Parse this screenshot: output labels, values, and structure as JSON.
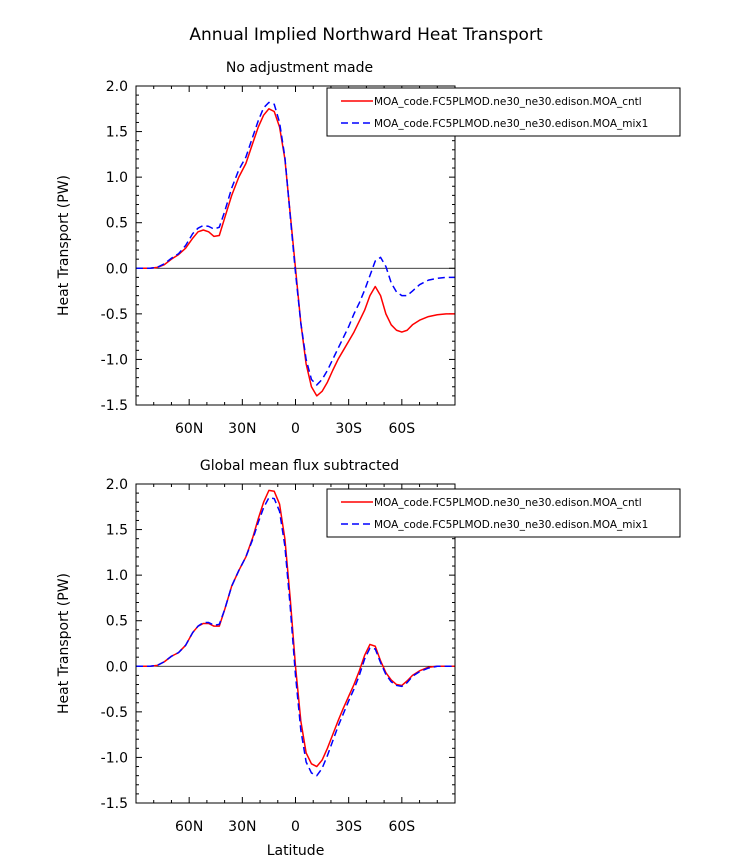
{
  "figure": {
    "title": "Annual Implied Northward Heat Transport"
  },
  "chart_data": [
    {
      "type": "line",
      "title": "No adjustment made",
      "xlabel": "",
      "ylabel": "Heat Transport (PW)",
      "xlim": [
        90,
        -90
      ],
      "ylim": [
        -1.5,
        2.0
      ],
      "x_ticks": [
        60,
        30,
        0,
        -30,
        -60
      ],
      "x_tick_labels": [
        "60N",
        "30N",
        "0",
        "30S",
        "60S"
      ],
      "y_ticks": [
        -1.5,
        -1.0,
        -0.5,
        0.0,
        0.5,
        1.0,
        1.5,
        2.0
      ],
      "y_tick_labels": [
        "-1.5",
        "-1.0",
        "-0.5",
        "0.0",
        "0.5",
        "1.0",
        "1.5",
        "2.0"
      ],
      "zero_line": true,
      "legend_position": "top-right",
      "series": [
        {
          "name": "MOA_code.FC5PLMOD.ne30_ne30.edison.MOA_cntl",
          "color": "#ff0000",
          "dash": "solid",
          "x": [
            90,
            82,
            78,
            74,
            70,
            66,
            62,
            58,
            55,
            52,
            49,
            46,
            43,
            40,
            36,
            32,
            28,
            24,
            21,
            18,
            15,
            12,
            9,
            6,
            3,
            0,
            -3,
            -6,
            -9,
            -12,
            -15,
            -18,
            -21,
            -24,
            -27,
            -30,
            -33,
            -36,
            -39,
            -42,
            -45,
            -48,
            -51,
            -54,
            -57,
            -60,
            -63,
            -66,
            -70,
            -75,
            -80,
            -85,
            -90
          ],
          "y": [
            0.0,
            0.0,
            0.01,
            0.04,
            0.1,
            0.15,
            0.22,
            0.33,
            0.4,
            0.42,
            0.4,
            0.35,
            0.36,
            0.55,
            0.8,
            1.0,
            1.15,
            1.38,
            1.55,
            1.68,
            1.75,
            1.72,
            1.55,
            1.2,
            0.6,
            0.0,
            -0.6,
            -1.05,
            -1.3,
            -1.4,
            -1.35,
            -1.25,
            -1.12,
            -1.0,
            -0.9,
            -0.8,
            -0.7,
            -0.58,
            -0.46,
            -0.3,
            -0.2,
            -0.3,
            -0.5,
            -0.62,
            -0.68,
            -0.7,
            -0.68,
            -0.62,
            -0.57,
            -0.53,
            -0.51,
            -0.5,
            -0.5
          ]
        },
        {
          "name": "MOA_code.FC5PLMOD.ne30_ne30.edison.MOA_mix1",
          "color": "#0000ff",
          "dash": "dashed",
          "x": [
            90,
            82,
            78,
            74,
            70,
            66,
            62,
            58,
            55,
            52,
            49,
            46,
            43,
            40,
            36,
            32,
            28,
            24,
            21,
            18,
            15,
            12,
            9,
            6,
            3,
            0,
            -3,
            -6,
            -9,
            -12,
            -15,
            -18,
            -21,
            -24,
            -27,
            -30,
            -33,
            -36,
            -39,
            -42,
            -45,
            -48,
            -51,
            -54,
            -57,
            -60,
            -63,
            -66,
            -70,
            -75,
            -80,
            -85,
            -90
          ],
          "y": [
            0.0,
            0.0,
            0.01,
            0.05,
            0.11,
            0.16,
            0.25,
            0.38,
            0.44,
            0.47,
            0.46,
            0.43,
            0.45,
            0.62,
            0.88,
            1.08,
            1.22,
            1.45,
            1.62,
            1.76,
            1.82,
            1.8,
            1.6,
            1.22,
            0.58,
            -0.05,
            -0.6,
            -1.0,
            -1.22,
            -1.28,
            -1.22,
            -1.12,
            -1.0,
            -0.88,
            -0.76,
            -0.64,
            -0.5,
            -0.38,
            -0.24,
            -0.08,
            0.08,
            0.12,
            0.02,
            -0.16,
            -0.26,
            -0.3,
            -0.3,
            -0.25,
            -0.18,
            -0.13,
            -0.11,
            -0.1,
            -0.1
          ]
        }
      ]
    },
    {
      "type": "line",
      "title": "Global mean flux subtracted",
      "xlabel": "Latitude",
      "ylabel": "Heat Transport (PW)",
      "xlim": [
        90,
        -90
      ],
      "ylim": [
        -1.5,
        2.0
      ],
      "x_ticks": [
        60,
        30,
        0,
        -30,
        -60
      ],
      "x_tick_labels": [
        "60N",
        "30N",
        "0",
        "30S",
        "60S"
      ],
      "y_ticks": [
        -1.5,
        -1.0,
        -0.5,
        0.0,
        0.5,
        1.0,
        1.5,
        2.0
      ],
      "y_tick_labels": [
        "-1.5",
        "-1.0",
        "-0.5",
        "0.0",
        "0.5",
        "1.0",
        "1.5",
        "2.0"
      ],
      "zero_line": true,
      "legend_position": "top-right",
      "series": [
        {
          "name": "MOA_code.FC5PLMOD.ne30_ne30.edison.MOA_cntl",
          "color": "#ff0000",
          "dash": "solid",
          "x": [
            90,
            82,
            78,
            74,
            70,
            66,
            62,
            58,
            55,
            52,
            49,
            46,
            43,
            40,
            36,
            32,
            28,
            24,
            21,
            18,
            15,
            12,
            9,
            6,
            3,
            0,
            -3,
            -6,
            -9,
            -12,
            -15,
            -18,
            -21,
            -24,
            -27,
            -30,
            -33,
            -36,
            -39,
            -42,
            -45,
            -48,
            -51,
            -54,
            -57,
            -60,
            -63,
            -66,
            -70,
            -75,
            -80,
            -85,
            -90
          ],
          "y": [
            0.0,
            0.0,
            0.01,
            0.05,
            0.11,
            0.15,
            0.23,
            0.37,
            0.44,
            0.47,
            0.47,
            0.44,
            0.44,
            0.62,
            0.88,
            1.05,
            1.2,
            1.42,
            1.62,
            1.8,
            1.93,
            1.92,
            1.78,
            1.4,
            0.75,
            0.0,
            -0.6,
            -0.95,
            -1.07,
            -1.1,
            -1.03,
            -0.9,
            -0.75,
            -0.6,
            -0.46,
            -0.33,
            -0.2,
            -0.05,
            0.12,
            0.24,
            0.22,
            0.06,
            -0.07,
            -0.15,
            -0.2,
            -0.21,
            -0.16,
            -0.1,
            -0.05,
            -0.01,
            0.0,
            0.0,
            0.0
          ]
        },
        {
          "name": "MOA_code.FC5PLMOD.ne30_ne30.edison.MOA_mix1",
          "color": "#0000ff",
          "dash": "dashed",
          "x": [
            90,
            82,
            78,
            74,
            70,
            66,
            62,
            58,
            55,
            52,
            49,
            46,
            43,
            40,
            36,
            32,
            28,
            24,
            21,
            18,
            15,
            12,
            9,
            6,
            3,
            0,
            -3,
            -6,
            -9,
            -12,
            -15,
            -18,
            -21,
            -24,
            -27,
            -30,
            -33,
            -36,
            -39,
            -42,
            -45,
            -48,
            -51,
            -54,
            -57,
            -60,
            -63,
            -66,
            -70,
            -75,
            -80,
            -85,
            -90
          ],
          "y": [
            0.0,
            0.0,
            0.01,
            0.05,
            0.11,
            0.15,
            0.23,
            0.37,
            0.44,
            0.48,
            0.48,
            0.45,
            0.46,
            0.62,
            0.88,
            1.05,
            1.2,
            1.4,
            1.58,
            1.74,
            1.85,
            1.84,
            1.7,
            1.32,
            0.66,
            -0.1,
            -0.7,
            -1.05,
            -1.17,
            -1.2,
            -1.12,
            -0.98,
            -0.82,
            -0.66,
            -0.52,
            -0.38,
            -0.25,
            -0.1,
            0.08,
            0.2,
            0.19,
            0.04,
            -0.09,
            -0.17,
            -0.21,
            -0.22,
            -0.18,
            -0.11,
            -0.06,
            -0.02,
            0.0,
            0.0,
            0.0
          ]
        }
      ]
    }
  ]
}
